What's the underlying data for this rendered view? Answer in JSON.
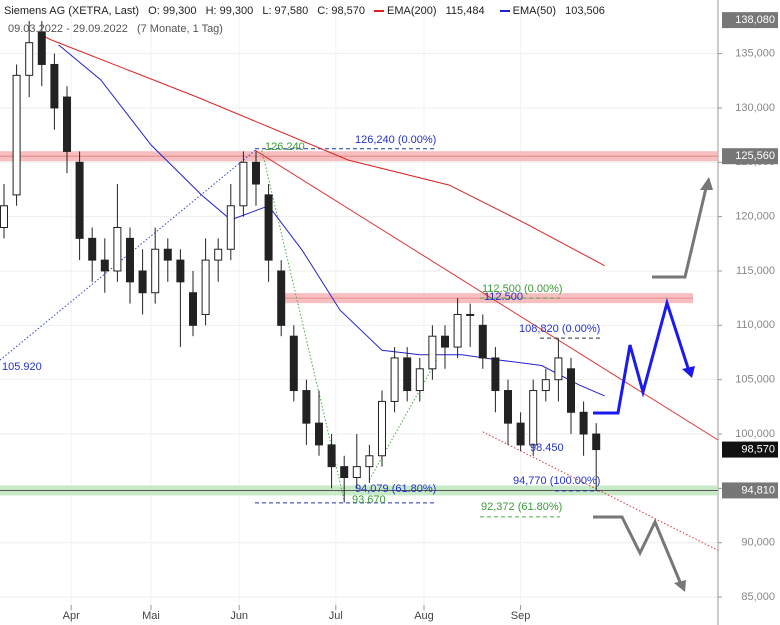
{
  "chart_data": {
    "type": "candlestick",
    "title": "Siemens AG (XETRA, Last)",
    "ohlc_header": [
      "O: 99,300",
      "H: 99,300",
      "L: 97,580",
      "C: 98,570"
    ],
    "date_range": "09.03.2022 - 29.09.2022",
    "duration": "(7 Monate, 1 Tag)",
    "xlim": [
      -0.95,
      170
    ],
    "ylim": [
      82.43,
      139.93
    ],
    "grid": true,
    "xticks": [
      {
        "value": 16,
        "label": "Apr"
      },
      {
        "value": 35,
        "label": "Mai"
      },
      {
        "value": 56,
        "label": "Jun"
      },
      {
        "value": 79,
        "label": "Jul"
      },
      {
        "value": 100,
        "label": "Aug"
      },
      {
        "value": 123,
        "label": "Sep"
      }
    ],
    "yticks": [
      {
        "value": 85,
        "label": "85,000"
      },
      {
        "value": 90,
        "label": "90,000"
      },
      {
        "value": 95,
        "label": "95,000"
      },
      {
        "value": 100,
        "label": "100,000"
      },
      {
        "value": 105,
        "label": "105,000"
      },
      {
        "value": 110,
        "label": "110,000"
      },
      {
        "value": 115,
        "label": "115,000"
      },
      {
        "value": 120,
        "label": "120,000"
      },
      {
        "value": 125,
        "label": "125,000"
      },
      {
        "value": 130,
        "label": "130,000"
      },
      {
        "value": 135,
        "label": "135,000"
      }
    ],
    "x": [
      0,
      3,
      6,
      9,
      12,
      15,
      18,
      21,
      24,
      27,
      30,
      33,
      36,
      39,
      42,
      45,
      48,
      51,
      54,
      57,
      60,
      63,
      66,
      69,
      72,
      75,
      78,
      81,
      84,
      87,
      90,
      93,
      96,
      99,
      102,
      105,
      108,
      111,
      114,
      117,
      120,
      123,
      126,
      129,
      132,
      135,
      138,
      141
    ],
    "candles": [
      [
        119,
        123,
        118,
        121
      ],
      [
        122,
        134,
        121,
        133
      ],
      [
        133,
        138,
        131,
        136
      ],
      [
        137,
        138,
        132,
        134
      ],
      [
        134,
        135,
        128,
        130
      ],
      [
        131,
        132,
        124,
        126
      ],
      [
        125,
        126,
        116,
        118
      ],
      [
        118,
        119,
        114,
        116
      ],
      [
        116,
        118,
        113,
        115
      ],
      [
        115,
        123,
        114,
        119
      ],
      [
        118,
        119,
        112,
        114
      ],
      [
        115,
        117,
        111,
        113
      ],
      [
        113,
        119,
        112,
        117
      ],
      [
        117,
        118,
        114,
        116
      ],
      [
        116,
        117,
        108,
        114
      ],
      [
        113,
        115,
        109,
        110
      ],
      [
        111,
        118,
        110,
        116
      ],
      [
        116,
        118,
        114,
        117
      ],
      [
        117,
        123,
        116,
        121
      ],
      [
        121,
        126,
        120,
        125
      ],
      [
        125,
        126,
        121,
        123
      ],
      [
        122,
        123,
        114,
        116
      ],
      [
        115,
        116,
        109,
        110
      ],
      [
        109,
        110,
        103,
        104
      ],
      [
        104,
        105,
        99,
        101
      ],
      [
        101,
        104,
        98,
        99
      ],
      [
        99,
        100,
        95,
        97
      ],
      [
        97,
        98,
        93.7,
        96
      ],
      [
        96,
        100,
        95,
        97
      ],
      [
        97,
        99,
        95.5,
        98
      ],
      [
        98,
        104,
        97,
        103
      ],
      [
        103,
        108,
        102,
        107
      ],
      [
        107,
        108,
        103,
        104
      ],
      [
        104,
        107,
        103,
        106
      ],
      [
        106,
        110,
        105,
        109
      ],
      [
        109,
        110,
        106,
        108
      ],
      [
        108,
        112.5,
        107,
        111
      ],
      [
        111,
        112,
        108,
        111
      ],
      [
        110,
        111,
        106,
        107
      ],
      [
        107,
        108,
        102,
        104
      ],
      [
        104,
        105,
        99,
        101
      ],
      [
        101,
        102,
        98.45,
        99
      ],
      [
        99,
        105,
        98,
        104
      ],
      [
        104,
        106,
        103,
        105
      ],
      [
        105,
        108.82,
        103,
        107
      ],
      [
        106,
        107,
        100,
        102
      ],
      [
        102,
        103,
        98,
        100
      ],
      [
        100,
        101,
        94.77,
        98.57
      ]
    ],
    "series": [
      {
        "name": "EMA(200)",
        "legend_value": "115,484",
        "color": "#dd2222",
        "x": [
          9,
          11,
          46,
          82,
          106,
          125,
          143
        ],
        "values": [
          136.7,
          136.3,
          131,
          125.2,
          122.9,
          119.2,
          115.484
        ]
      },
      {
        "name": "EMA(50)",
        "legend_value": "103,506",
        "color": "#2222cc",
        "x": [
          13,
          23,
          35,
          47,
          54,
          63,
          71,
          80,
          90,
          99,
          109,
          118,
          128,
          137,
          143
        ],
        "values": [
          135.8,
          132.6,
          126.6,
          122,
          119.7,
          121,
          116.9,
          111.4,
          107.7,
          107.3,
          107.3,
          106.8,
          106.3,
          104.5,
          103.506
        ]
      }
    ],
    "zones": [
      {
        "value": 125.56,
        "color": "#f5b3b3"
      },
      {
        "value": 112.5,
        "color": "#f5b3b3"
      },
      {
        "value": 94.81,
        "color": "#bfe6bf"
      }
    ],
    "trendlines": [
      {
        "color": "#dd3333",
        "x": [
          59.8,
          170
        ],
        "values": [
          126.1,
          99.45
        ]
      },
      {
        "color": "#dd3333",
        "x": [
          114,
          170
        ],
        "values": [
          100.2,
          89.3
        ],
        "dotted": true
      },
      {
        "color": "#3344cc",
        "x": [
          -0.95,
          59.8
        ],
        "values": [
          106.8,
          126.1
        ],
        "dotted": true
      },
      {
        "color": "#44aa44",
        "x": [
          61.4,
          81
        ],
        "values": [
          126.1,
          93.9
        ],
        "dotted": true
      },
      {
        "color": "#44aa44",
        "x": [
          87,
          103
        ],
        "values": [
          95.8,
          106.8
        ],
        "dotted": true
      }
    ],
    "dashed_levels": [
      {
        "value": 126.24,
        "color": "#2233aa"
      },
      {
        "value": 112.5,
        "color": "#44aa44"
      },
      {
        "value": 108.82,
        "color": "#333333"
      },
      {
        "value": 94.77,
        "color": "#2233aa"
      },
      {
        "value": 93.67,
        "color": "#2233aa"
      },
      {
        "value": 92.372,
        "color": "#44aa44"
      }
    ],
    "annotations": [
      {
        "text": "126.240",
        "color": "#3a9a3a"
      },
      {
        "text": "126,240 (0.00%)",
        "color": "#2233cc"
      },
      {
        "text": "112,500 (0.00%)",
        "color": "#3a9a3a"
      },
      {
        "text": "112.500",
        "color": "#2233cc"
      },
      {
        "text": "108,820 (0.00%)",
        "color": "#2233cc"
      },
      {
        "text": "105.920",
        "color": "#2233cc"
      },
      {
        "text": "98.450",
        "color": "#2233cc"
      },
      {
        "text": "94,770 (100.00%)",
        "color": "#2233cc"
      },
      {
        "text": "94,079 (61.80%)",
        "color": "#2233cc"
      },
      {
        "text": "93.670",
        "color": "#3a9a3a"
      },
      {
        "text": "92,372 (61.80%)",
        "color": "#3a9a3a"
      }
    ],
    "price_labels": [
      {
        "value": 138.08,
        "label": "138,080",
        "color": "#777777"
      },
      {
        "value": 125.56,
        "label": "125,560",
        "color": "#777777"
      },
      {
        "value": 98.57,
        "label": "98,570",
        "color": "#111111"
      },
      {
        "value": 94.81,
        "label": "94,810",
        "color": "#777777"
      }
    ]
  }
}
